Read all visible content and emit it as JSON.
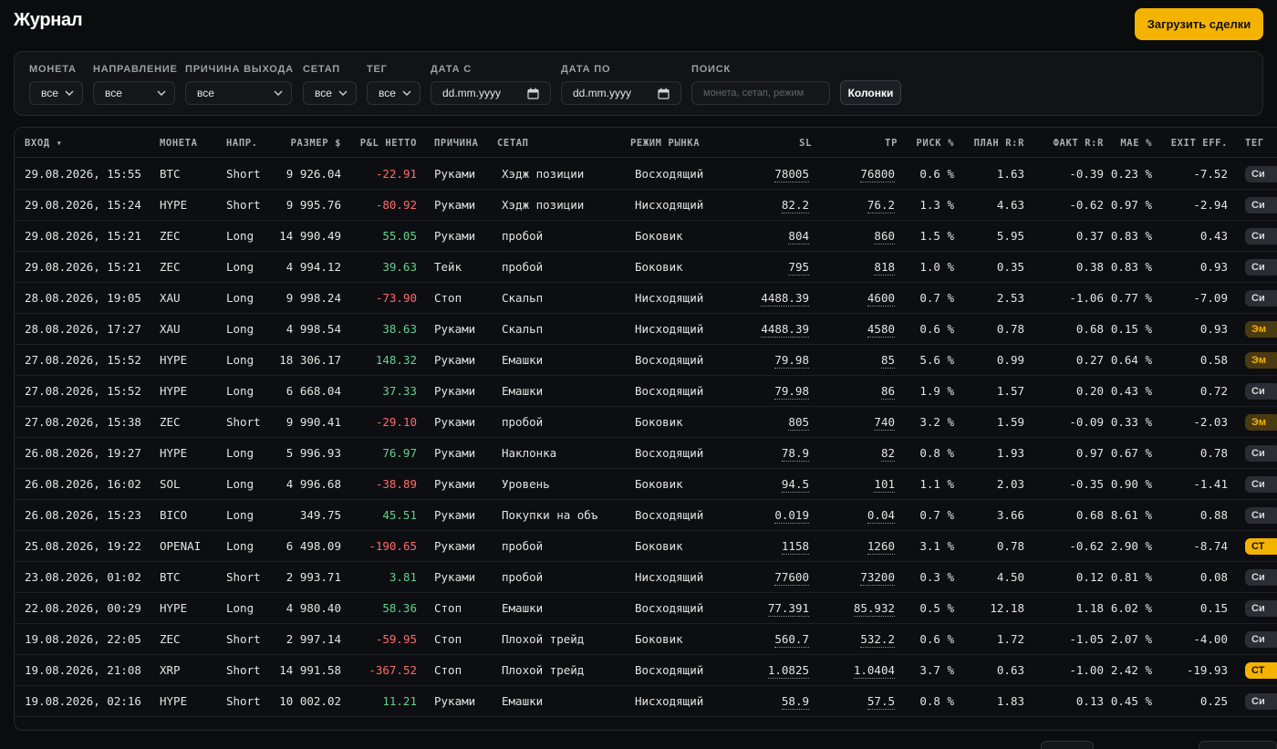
{
  "app": {
    "title": "Журнал",
    "upload_label": "Загрузить сделки"
  },
  "filters": {
    "coin": {
      "label": "МОНЕТА",
      "value": "все"
    },
    "direction": {
      "label": "НАПРАВЛЕНИЕ",
      "value": "все"
    },
    "exit_reason": {
      "label": "ПРИЧИНА ВЫХОДА",
      "value": "все"
    },
    "setup": {
      "label": "СЕТАП",
      "value": "все"
    },
    "tag": {
      "label": "ТЕГ",
      "value": "все"
    },
    "date_from": {
      "label": "ДАТА С",
      "value": "dd.mm.yyyy"
    },
    "date_to": {
      "label": "ДАТА ПО",
      "value": "dd.mm.yyyy"
    },
    "search": {
      "label": "ПОИСК",
      "placeholder": "монета, сетап, режим"
    },
    "columns_label": "Колонки"
  },
  "columns": [
    "ВХОД ▾",
    "МОНЕТА",
    "НАПР.",
    "РАЗМЕР $",
    "P&L НЕТТО",
    "ПРИЧИНА",
    "СЕТАП",
    "РЕЖИМ РЫНКА",
    "SL",
    "TP",
    "РИСК %",
    "ПЛАН R:R",
    "ФАКТ R:R",
    "MAE %",
    "EXIT EFF.",
    "ТЕГ"
  ],
  "rows": [
    {
      "entry": "29.08.2026, 15:55",
      "coin": "BTC",
      "dir": "Short",
      "size": "9 926.04",
      "pnl": "-22.91",
      "reason": "Руками",
      "setup": "Хэдж позиции",
      "regime": "Восходящий",
      "sl": "78005",
      "tp": "76800",
      "risk": "0.6 %",
      "plan_rr": "1.63",
      "fact_rr": "-0.39",
      "mae": "0.23 %",
      "exit_eff": "-7.52",
      "tag": "Си",
      "tag_style": "gray"
    },
    {
      "entry": "29.08.2026, 15:24",
      "coin": "HYPE",
      "dir": "Short",
      "size": "9 995.76",
      "pnl": "-80.92",
      "reason": "Руками",
      "setup": "Хэдж позиции",
      "regime": "Нисходящий",
      "sl": "82.2",
      "tp": "76.2",
      "risk": "1.3 %",
      "plan_rr": "4.63",
      "fact_rr": "-0.62",
      "mae": "0.97 %",
      "exit_eff": "-2.94",
      "tag": "Си",
      "tag_style": "gray"
    },
    {
      "entry": "29.08.2026, 15:21",
      "coin": "ZEC",
      "dir": "Long",
      "size": "14 990.49",
      "pnl": "55.05",
      "reason": "Руками",
      "setup": "пробой",
      "regime": "Боковик",
      "sl": "804",
      "tp": "860",
      "risk": "1.5 %",
      "plan_rr": "5.95",
      "fact_rr": "0.37",
      "mae": "0.83 %",
      "exit_eff": "0.43",
      "tag": "Си",
      "tag_style": "gray"
    },
    {
      "entry": "29.08.2026, 15:21",
      "coin": "ZEC",
      "dir": "Long",
      "size": "4 994.12",
      "pnl": "39.63",
      "reason": "Тейк",
      "setup": "пробой",
      "regime": "Боковик",
      "sl": "795",
      "tp": "818",
      "risk": "1.0 %",
      "plan_rr": "0.35",
      "fact_rr": "0.38",
      "mae": "0.83 %",
      "exit_eff": "0.93",
      "tag": "Си",
      "tag_style": "gray"
    },
    {
      "entry": "28.08.2026, 19:05",
      "coin": "XAU",
      "dir": "Long",
      "size": "9 998.24",
      "pnl": "-73.90",
      "reason": "Стоп",
      "setup": "Скальп",
      "regime": "Нисходящий",
      "sl": "4488.39",
      "tp": "4600",
      "risk": "0.7 %",
      "plan_rr": "2.53",
      "fact_rr": "-1.06",
      "mae": "0.77 %",
      "exit_eff": "-7.09",
      "tag": "Си",
      "tag_style": "gray"
    },
    {
      "entry": "28.08.2026, 17:27",
      "coin": "XAU",
      "dir": "Long",
      "size": "4 998.54",
      "pnl": "38.63",
      "reason": "Руками",
      "setup": "Скальп",
      "regime": "Нисходящий",
      "sl": "4488.39",
      "tp": "4580",
      "risk": "0.6 %",
      "plan_rr": "0.78",
      "fact_rr": "0.68",
      "mae": "0.15 %",
      "exit_eff": "0.93",
      "tag": "Эм",
      "tag_style": "amber"
    },
    {
      "entry": "27.08.2026, 15:52",
      "coin": "HYPE",
      "dir": "Long",
      "size": "18 306.17",
      "pnl": "148.32",
      "reason": "Руками",
      "setup": "Емашки",
      "regime": "Восходящий",
      "sl": "79.98",
      "tp": "85",
      "risk": "5.6 %",
      "plan_rr": "0.99",
      "fact_rr": "0.27",
      "mae": "0.64 %",
      "exit_eff": "0.58",
      "tag": "Эм",
      "tag_style": "amber"
    },
    {
      "entry": "27.08.2026, 15:52",
      "coin": "HYPE",
      "dir": "Long",
      "size": "6 668.04",
      "pnl": "37.33",
      "reason": "Руками",
      "setup": "Емашки",
      "regime": "Восходящий",
      "sl": "79.98",
      "tp": "86",
      "risk": "1.9 %",
      "plan_rr": "1.57",
      "fact_rr": "0.20",
      "mae": "0.43 %",
      "exit_eff": "0.72",
      "tag": "Си",
      "tag_style": "gray"
    },
    {
      "entry": "27.08.2026, 15:38",
      "coin": "ZEC",
      "dir": "Short",
      "size": "9 990.41",
      "pnl": "-29.10",
      "reason": "Руками",
      "setup": "пробой",
      "regime": "Боковик",
      "sl": "805",
      "tp": "740",
      "risk": "3.2 %",
      "plan_rr": "1.59",
      "fact_rr": "-0.09",
      "mae": "0.33 %",
      "exit_eff": "-2.03",
      "tag": "Эм",
      "tag_style": "amber"
    },
    {
      "entry": "26.08.2026, 19:27",
      "coin": "HYPE",
      "dir": "Long",
      "size": "5 996.93",
      "pnl": "76.97",
      "reason": "Руками",
      "setup": "Наклонка",
      "regime": "Восходящий",
      "sl": "78.9",
      "tp": "82",
      "risk": "0.8 %",
      "plan_rr": "1.93",
      "fact_rr": "0.97",
      "mae": "0.67 %",
      "exit_eff": "0.78",
      "tag": "Си",
      "tag_style": "gray"
    },
    {
      "entry": "26.08.2026, 16:02",
      "coin": "SOL",
      "dir": "Long",
      "size": "4 996.68",
      "pnl": "-38.89",
      "reason": "Руками",
      "setup": "Уровень",
      "regime": "Боковик",
      "sl": "94.5",
      "tp": "101",
      "risk": "1.1 %",
      "plan_rr": "2.03",
      "fact_rr": "-0.35",
      "mae": "0.90 %",
      "exit_eff": "-1.41",
      "tag": "Си",
      "tag_style": "gray"
    },
    {
      "entry": "26.08.2026, 15:23",
      "coin": "BICO",
      "dir": "Long",
      "size": "349.75",
      "pnl": "45.51",
      "reason": "Руками",
      "setup": "Покупки на объ",
      "regime": "Восходящий",
      "sl": "0.019",
      "tp": "0.04",
      "risk": "0.7 %",
      "plan_rr": "3.66",
      "fact_rr": "0.68",
      "mae": "8.61 %",
      "exit_eff": "0.88",
      "tag": "Си",
      "tag_style": "gray"
    },
    {
      "entry": "25.08.2026, 19:22",
      "coin": "OPENAI",
      "dir": "Long",
      "size": "6 498.09",
      "pnl": "-190.65",
      "reason": "Руками",
      "setup": "пробой",
      "regime": "Боковик",
      "sl": "1158",
      "tp": "1260",
      "risk": "3.1 %",
      "plan_rr": "0.78",
      "fact_rr": "-0.62",
      "mae": "2.90 %",
      "exit_eff": "-8.74",
      "tag": "СТ",
      "tag_style": "yellow"
    },
    {
      "entry": "23.08.2026, 01:02",
      "coin": "BTC",
      "dir": "Short",
      "size": "2 993.71",
      "pnl": "3.81",
      "reason": "Руками",
      "setup": "пробой",
      "regime": "Нисходящий",
      "sl": "77600",
      "tp": "73200",
      "risk": "0.3 %",
      "plan_rr": "4.50",
      "fact_rr": "0.12",
      "mae": "0.81 %",
      "exit_eff": "0.08",
      "tag": "Си",
      "tag_style": "gray"
    },
    {
      "entry": "22.08.2026, 00:29",
      "coin": "HYPE",
      "dir": "Long",
      "size": "4 980.40",
      "pnl": "58.36",
      "reason": "Стоп",
      "setup": "Емашки",
      "regime": "Восходящий",
      "sl": "77.391",
      "tp": "85.932",
      "risk": "0.5 %",
      "plan_rr": "12.18",
      "fact_rr": "1.18",
      "mae": "6.02 %",
      "exit_eff": "0.15",
      "tag": "Си",
      "tag_style": "gray"
    },
    {
      "entry": "19.08.2026, 22:05",
      "coin": "ZEC",
      "dir": "Short",
      "size": "2 997.14",
      "pnl": "-59.95",
      "reason": "Стоп",
      "setup": "Плохой трейд",
      "regime": "Боковик",
      "sl": "560.7",
      "tp": "532.2",
      "risk": "0.6 %",
      "plan_rr": "1.72",
      "fact_rr": "-1.05",
      "mae": "2.07 %",
      "exit_eff": "-4.00",
      "tag": "Си",
      "tag_style": "gray"
    },
    {
      "entry": "19.08.2026, 21:08",
      "coin": "XRP",
      "dir": "Short",
      "size": "14 991.58",
      "pnl": "-367.52",
      "reason": "Стоп",
      "setup": "Плохой трейд",
      "regime": "Восходящий",
      "sl": "1.0825",
      "tp": "1.0404",
      "risk": "3.7 %",
      "plan_rr": "0.63",
      "fact_rr": "-1.00",
      "mae": "2.42 %",
      "exit_eff": "-19.93",
      "tag": "СТ",
      "tag_style": "yellow"
    },
    {
      "entry": "19.08.2026, 02:16",
      "coin": "HYPE",
      "dir": "Short",
      "size": "10 002.02",
      "pnl": "11.21",
      "reason": "Руками",
      "setup": "Емашки",
      "regime": "Нисходящий",
      "sl": "58.9",
      "tp": "57.5",
      "risk": "0.8 %",
      "plan_rr": "1.83",
      "fact_rr": "0.13",
      "mae": "0.45 %",
      "exit_eff": "0.25",
      "tag": "Си",
      "tag_style": "gray"
    }
  ],
  "colors": {
    "accent": "#f5b301",
    "positive": "#5fd38d",
    "negative": "#ff6b6b",
    "background": "#0b0c0e"
  },
  "icons": {
    "select_chevron": "chevron-down-icon",
    "date_picker": "calendar-icon"
  }
}
